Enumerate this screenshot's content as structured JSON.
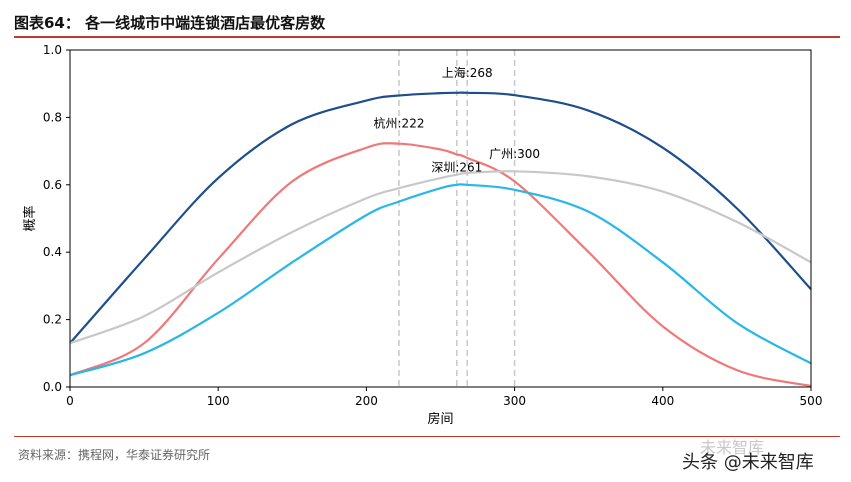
{
  "header": {
    "title": "图表64：  各一线城市中端连锁酒店最优客房数"
  },
  "footer": {
    "source": "资料来源：携程网，华泰证券研究所",
    "watermark": "头条 @未来智库",
    "watermark_faint": "未来智库"
  },
  "chart_data": {
    "type": "line",
    "title": "",
    "xlabel": "房间",
    "ylabel": "概率",
    "xlim": [
      0,
      500
    ],
    "ylim": [
      0,
      1.0
    ],
    "xticks": [
      0,
      100,
      200,
      300,
      400,
      500
    ],
    "yticks": [
      0.0,
      0.2,
      0.4,
      0.6,
      0.8,
      1.0
    ],
    "x": [
      0,
      50,
      100,
      150,
      200,
      222,
      250,
      261,
      268,
      300,
      350,
      400,
      450,
      500
    ],
    "series": [
      {
        "color": "#1f4e8c",
        "values": [
          0.13,
          0.38,
          0.62,
          0.78,
          0.85,
          0.865,
          0.872,
          0.873,
          0.873,
          0.866,
          0.82,
          0.71,
          0.53,
          0.29
        ]
      },
      {
        "color": "#f07878",
        "values": [
          0.035,
          0.13,
          0.38,
          0.61,
          0.71,
          0.722,
          0.705,
          0.69,
          0.68,
          0.61,
          0.4,
          0.18,
          0.05,
          0.003
        ]
      },
      {
        "color": "#c8c8c8",
        "values": [
          0.13,
          0.21,
          0.34,
          0.46,
          0.56,
          0.59,
          0.62,
          0.63,
          0.635,
          0.64,
          0.625,
          0.58,
          0.49,
          0.37
        ]
      },
      {
        "color": "#29b6e8",
        "values": [
          0.035,
          0.1,
          0.22,
          0.37,
          0.51,
          0.55,
          0.59,
          0.6,
          0.6,
          0.585,
          0.52,
          0.37,
          0.19,
          0.07
        ]
      }
    ],
    "vlines": [
      222,
      261,
      268,
      300
    ],
    "annotations": [
      {
        "text": "上海:268",
        "x": 268,
        "y": 0.92
      },
      {
        "text": "杭州:222",
        "x": 222,
        "y": 0.77
      },
      {
        "text": "广州:300",
        "x": 300,
        "y": 0.68
      },
      {
        "text": "深圳:261",
        "x": 261,
        "y": 0.64
      }
    ],
    "grid": false,
    "legend": "none"
  }
}
